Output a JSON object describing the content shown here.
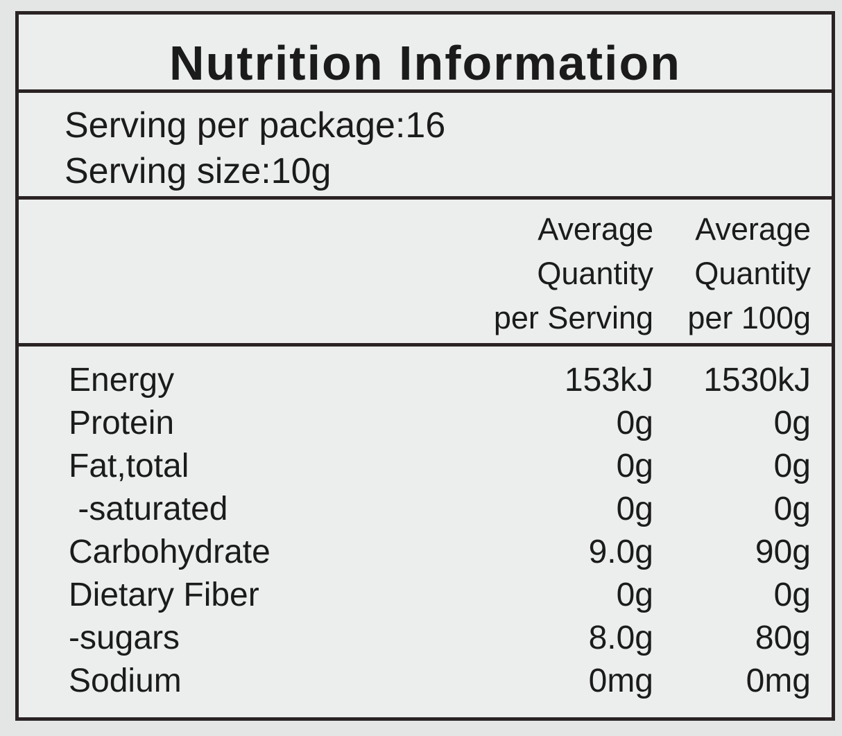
{
  "title": "Nutrition Information",
  "serving": {
    "per_package": "Serving per package:16",
    "size": "Serving size:10g"
  },
  "table": {
    "columns": [
      [
        "Average",
        "Quantity",
        "per Serving"
      ],
      [
        "Average",
        "Quantity",
        "per 100g"
      ]
    ],
    "rows": [
      [
        "Energy",
        "153kJ",
        "1530kJ"
      ],
      [
        "Protein",
        "0g",
        "0g"
      ],
      [
        "Fat,total",
        "0g",
        "0g"
      ],
      [
        " -saturated",
        "0g",
        "0g"
      ],
      [
        "Carbohydrate",
        "9.0g",
        "90g"
      ],
      [
        "Dietary Fiber",
        "0g",
        "0g"
      ],
      [
        "-sugars",
        "8.0g",
        "80g"
      ],
      [
        "Sodium",
        "0mg",
        "0mg"
      ]
    ]
  }
}
